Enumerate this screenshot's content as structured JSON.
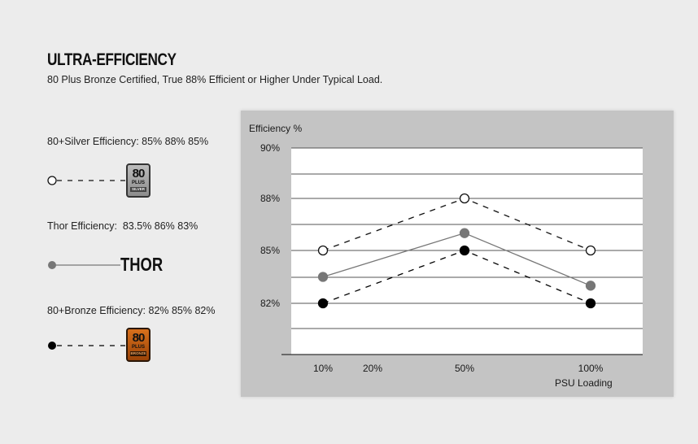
{
  "header": {
    "title": "ULTRA-EFFICIENCY",
    "subtitle": "80 Plus Bronze Certified, True 88% Efficient or Higher Under Typical Load."
  },
  "legend": {
    "silver": {
      "text": "80+Silver Efficiency: 85% 88% 85%",
      "badge_number": "80",
      "badge_plus": "PLUS",
      "badge_tier": "SILVER"
    },
    "thor": {
      "text": "Thor Efficiency:  83.5% 86% 83%",
      "word": "THOR"
    },
    "bronze": {
      "text": "80+Bronze Efficiency: 82% 85% 82%",
      "badge_number": "80",
      "badge_plus": "PLUS",
      "badge_tier": "BRONZE"
    }
  },
  "colors": {
    "silver_series": "#111111",
    "thor_series": "#777777",
    "bronze_series": "#000000",
    "plot_bg": "#ffffff",
    "panel_bg": "#c4c4c4"
  },
  "chart_data": {
    "type": "line",
    "title": "",
    "ylabel": "Efficiency %",
    "xlabel": "PSU Loading",
    "x_ticks": [
      "10%",
      "20%",
      "50%",
      "100%"
    ],
    "y_ticks": [
      "82%",
      "85%",
      "88%",
      "90%"
    ],
    "x": [
      10,
      50,
      100
    ],
    "series": [
      {
        "name": "80+Silver Efficiency",
        "values": [
          85,
          88,
          85
        ],
        "style": "dashed",
        "marker": "open-circle"
      },
      {
        "name": "Thor Efficiency",
        "values": [
          83.5,
          86,
          83
        ],
        "style": "solid",
        "marker": "gray-circle"
      },
      {
        "name": "80+Bronze Efficiency",
        "values": [
          82,
          85,
          82
        ],
        "style": "dashed",
        "marker": "filled-circle"
      }
    ],
    "grid": true,
    "legend_position": "left"
  }
}
